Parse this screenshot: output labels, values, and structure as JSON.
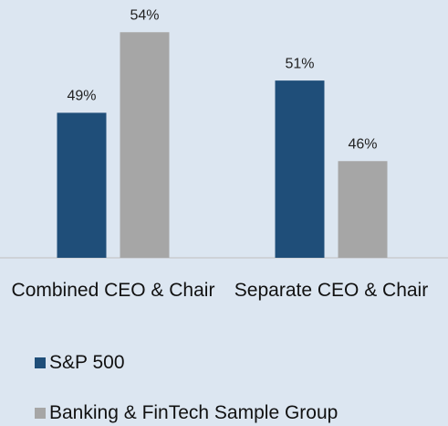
{
  "chart_data": {
    "type": "bar",
    "categories": [
      "Combined CEO & Chair",
      "Separate CEO & Chair"
    ],
    "series": [
      {
        "name": "S&P 500",
        "color": "#1f4e79",
        "values": [
          49,
          51
        ],
        "value_labels": [
          "49%",
          "51%"
        ]
      },
      {
        "name": "Banking & FinTech Sample Group",
        "color": "#a6a6a6",
        "values": [
          54,
          46
        ],
        "value_labels": [
          "54%",
          "46%"
        ]
      }
    ],
    "ylim": [
      40,
      56
    ],
    "legend": "bottom"
  }
}
